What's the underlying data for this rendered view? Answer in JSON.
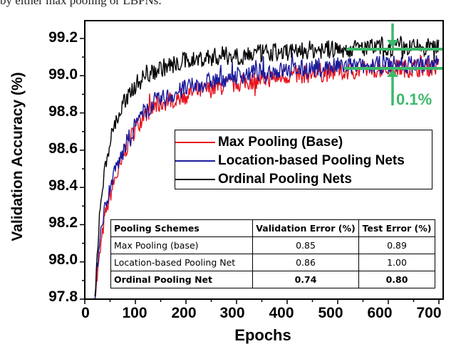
{
  "caption_fragment": "by either max pooling or LBPNs.",
  "chart_data": {
    "type": "line",
    "title": "",
    "xlabel": "Epochs",
    "ylabel": "Validation Accuracy (%)",
    "xlim": [
      0,
      710
    ],
    "ylim": [
      97.8,
      99.3
    ],
    "xticks": [
      0,
      100,
      200,
      300,
      400,
      500,
      600,
      700
    ],
    "yticks": [
      "97.8",
      "98.0",
      "98.2",
      "98.4",
      "98.6",
      "98.8",
      "99.0",
      "99.2"
    ],
    "grid": false,
    "legend_position": "center-right",
    "x": [
      20,
      30,
      40,
      50,
      60,
      70,
      80,
      100,
      120,
      150,
      200,
      250,
      300,
      350,
      400,
      450,
      500,
      550,
      600,
      650,
      700
    ],
    "series": [
      {
        "name": "Max Pooling (Base)",
        "color": "#e8121c",
        "values": [
          97.8,
          98.05,
          98.25,
          98.35,
          98.45,
          98.5,
          98.6,
          98.72,
          98.8,
          98.85,
          98.9,
          98.93,
          98.96,
          98.98,
          99.0,
          99.01,
          99.02,
          99.03,
          99.04,
          99.04,
          99.05
        ]
      },
      {
        "name": "Location-based Pooling Nets",
        "color": "#1a1a9c",
        "values": [
          97.8,
          98.15,
          98.3,
          98.4,
          98.5,
          98.55,
          98.62,
          98.74,
          98.82,
          98.87,
          98.93,
          98.97,
          99.0,
          99.02,
          99.03,
          99.04,
          99.05,
          99.05,
          99.06,
          99.06,
          99.06
        ]
      },
      {
        "name": "Ordinal Pooling Nets",
        "color": "#000000",
        "values": [
          97.8,
          98.3,
          98.5,
          98.65,
          98.75,
          98.8,
          98.87,
          98.95,
          99.0,
          99.04,
          99.08,
          99.1,
          99.11,
          99.12,
          99.13,
          99.14,
          99.14,
          99.15,
          99.15,
          99.15,
          99.16
        ]
      }
    ],
    "annotations": [
      {
        "type": "bracket",
        "x_range": [
          520,
          700
        ],
        "y_values": [
          99.15,
          99.05
        ],
        "label": "0.1%",
        "color": "#3cb96a"
      }
    ],
    "table": {
      "columns": [
        "Pooling Schemes",
        "Validation Error (%)",
        "Test Error (%)"
      ],
      "rows": [
        [
          "Max Pooling (base)",
          "0.85",
          "0.89"
        ],
        [
          "Location-based Pooling Net",
          "0.86",
          "1.00"
        ],
        [
          "Ordinal Pooling Net",
          "0.74",
          "0.80"
        ]
      ]
    }
  },
  "axes": {
    "xlabel": "Epochs",
    "ylabel": "Validation Accuracy (%)",
    "xticks": [
      "0",
      "100",
      "200",
      "300",
      "400",
      "500",
      "600",
      "700"
    ],
    "yticks": [
      "99.2",
      "99.0",
      "98.8",
      "98.6",
      "98.4",
      "98.2",
      "98.0",
      "97.8"
    ]
  },
  "legend": {
    "items": [
      {
        "label": "Max Pooling (Base)",
        "color": "#e8121c"
      },
      {
        "label": "Location-based Pooling Nets",
        "color": "#1a1a9c"
      },
      {
        "label": "Ordinal Pooling Nets",
        "color": "#000000"
      }
    ]
  },
  "annotation": {
    "label": "0.1%",
    "color": "#3cb96a"
  },
  "table": {
    "headers": [
      "Pooling Schemes",
      "Validation Error (%)",
      "Test Error (%)"
    ],
    "rows": [
      [
        "Max Pooling (base)",
        "0.85",
        "0.89"
      ],
      [
        "Location-based Pooling Net",
        "0.86",
        "1.00"
      ],
      [
        "Ordinal Pooling Net",
        "0.74",
        "0.80"
      ]
    ]
  }
}
